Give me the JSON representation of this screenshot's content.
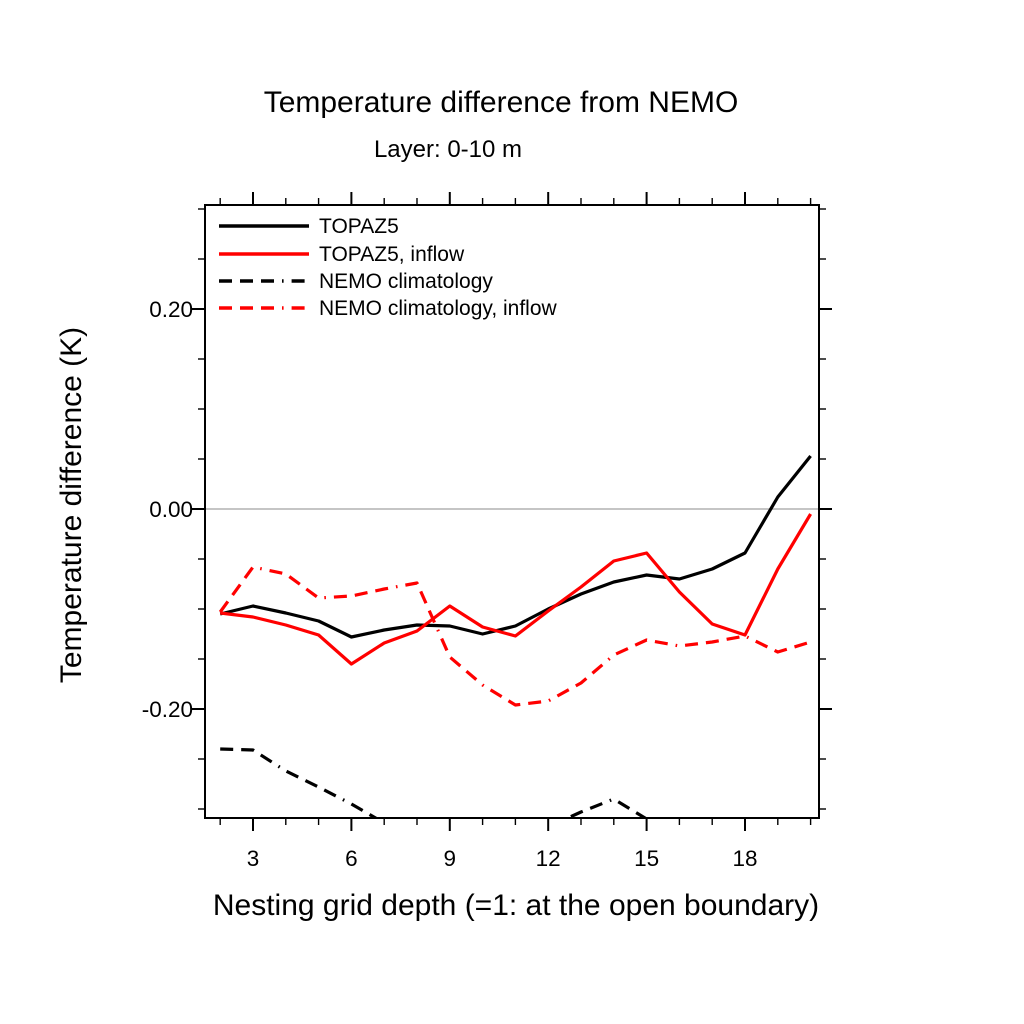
{
  "chart": {
    "title": "Temperature difference from NEMO",
    "subtitle": "Layer: 0-10 m",
    "xlabel": "Nesting grid depth (=1: at the open boundary)",
    "ylabel": "Temperature difference (K)",
    "colors": {
      "black": "#000000",
      "red": "#ff0000",
      "zero_line": "#b2b2b2",
      "frame": "#000000"
    }
  },
  "chart_data": {
    "type": "line",
    "x": [
      2,
      3,
      4,
      5,
      6,
      7,
      8,
      9,
      10,
      11,
      12,
      13,
      14,
      15,
      16,
      17,
      18,
      19,
      20
    ],
    "series": [
      {
        "name": "TOPAZ5",
        "color": "#000000",
        "style": "solid",
        "values": [
          -0.105,
          -0.097,
          -0.104,
          -0.112,
          -0.128,
          -0.121,
          -0.116,
          -0.117,
          -0.125,
          -0.117,
          -0.1,
          -0.085,
          -0.073,
          -0.066,
          -0.07,
          -0.06,
          -0.044,
          0.012,
          0.053
        ]
      },
      {
        "name": "TOPAZ5, inflow",
        "color": "#ff0000",
        "style": "solid",
        "values": [
          -0.104,
          -0.108,
          -0.116,
          -0.126,
          -0.155,
          -0.134,
          -0.122,
          -0.097,
          -0.118,
          -0.127,
          -0.102,
          -0.078,
          -0.052,
          -0.044,
          -0.083,
          -0.115,
          -0.126,
          -0.06,
          -0.005
        ]
      },
      {
        "name": "NEMO climatology",
        "color": "#000000",
        "style": "dashed",
        "values": [
          -0.24,
          -0.241,
          -0.262,
          -0.278,
          -0.295,
          -0.314,
          -0.333,
          -0.343,
          -0.343,
          -0.336,
          -0.318,
          -0.303,
          -0.29,
          -0.31,
          -0.335,
          null,
          null,
          null,
          null
        ]
      },
      {
        "name": "NEMO climatology, inflow",
        "color": "#ff0000",
        "style": "dashed",
        "values": [
          -0.103,
          -0.058,
          -0.065,
          -0.089,
          -0.087,
          -0.08,
          -0.074,
          -0.148,
          -0.176,
          -0.196,
          -0.192,
          -0.174,
          -0.146,
          -0.131,
          -0.137,
          -0.133,
          -0.127,
          -0.143,
          -0.133
        ]
      }
    ],
    "xlim": [
      1.537,
      20.256
    ],
    "ylim": [
      -0.309,
      0.304
    ],
    "x_major_ticks": [
      3,
      6,
      9,
      12,
      15,
      18
    ],
    "x_tick_labels": [
      "3",
      "6",
      "9",
      "12",
      "15",
      "18"
    ],
    "x_minor_step": 1,
    "y_major_ticks": [
      0.2,
      0.0,
      -0.2
    ],
    "y_tick_labels": [
      "0.20",
      "0.00",
      "-0.20"
    ],
    "y_minor_step": 0.05,
    "zero_line": true,
    "grid": false,
    "legend_position": "top-left-inside"
  }
}
